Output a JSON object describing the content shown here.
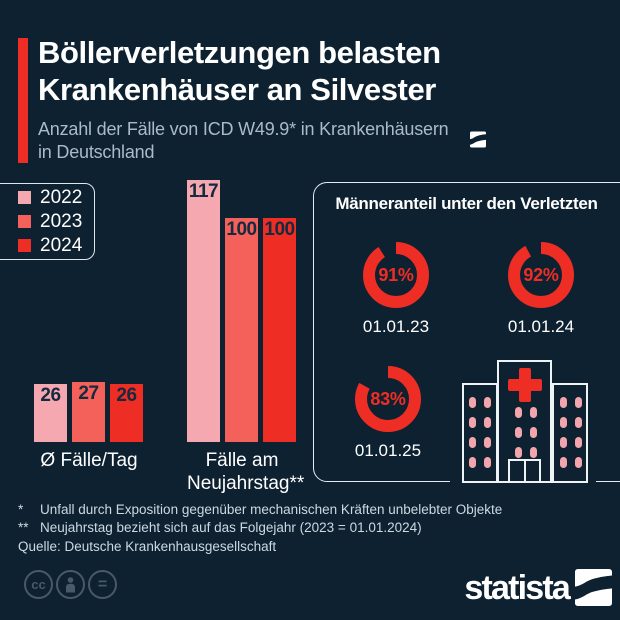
{
  "header": {
    "title_line1": "Böllerverletzungen belasten",
    "title_line2": "Krankenhäuser an Silvester",
    "subtitle_line1": "Anzahl der Fälle von ICD W49.9* in Krankenhäusern",
    "subtitle_line2": "in Deutschland"
  },
  "legend": {
    "items": [
      {
        "label": "2022",
        "color": "#f5a8b0"
      },
      {
        "label": "2023",
        "color": "#f4605a"
      },
      {
        "label": "2024",
        "color": "#ee2e24"
      }
    ]
  },
  "chart_data": {
    "type": "bar",
    "series_years": [
      "2022",
      "2023",
      "2024"
    ],
    "colors": [
      "#f5a8b0",
      "#f4605a",
      "#ee2e24"
    ],
    "ymax": 117,
    "groups": [
      {
        "label": "Ø Fälle/Tag",
        "values": [
          26,
          27,
          26
        ]
      },
      {
        "label_line1": "Fälle am",
        "label_line2": "Neujahrstag**",
        "values": [
          117,
          100,
          100
        ]
      }
    ],
    "donuts": {
      "type": "donut",
      "title": "Männeranteil unter den Verletzten",
      "color": "#ee2e24",
      "items": [
        {
          "label": "01.01.23",
          "percent": 91,
          "percent_label": "91%"
        },
        {
          "label": "01.01.24",
          "percent": 92,
          "percent_label": "92%"
        },
        {
          "label": "01.01.25",
          "percent": 83,
          "percent_label": "83%"
        }
      ]
    }
  },
  "footnotes": [
    {
      "marker": "*",
      "text": "Unfall durch Exposition gegenüber mechanischen Kräften unbelebter Objekte"
    },
    {
      "marker": "**",
      "text": "Neujahrstag bezieht sich auf das Folgejahr (2023 = 01.01.2024)"
    }
  ],
  "source": "Quelle: Deutsche Krankenhausgesellschaft",
  "branding": {
    "logo_text": "statista",
    "cc_label": "cc",
    "nd_label": "="
  }
}
